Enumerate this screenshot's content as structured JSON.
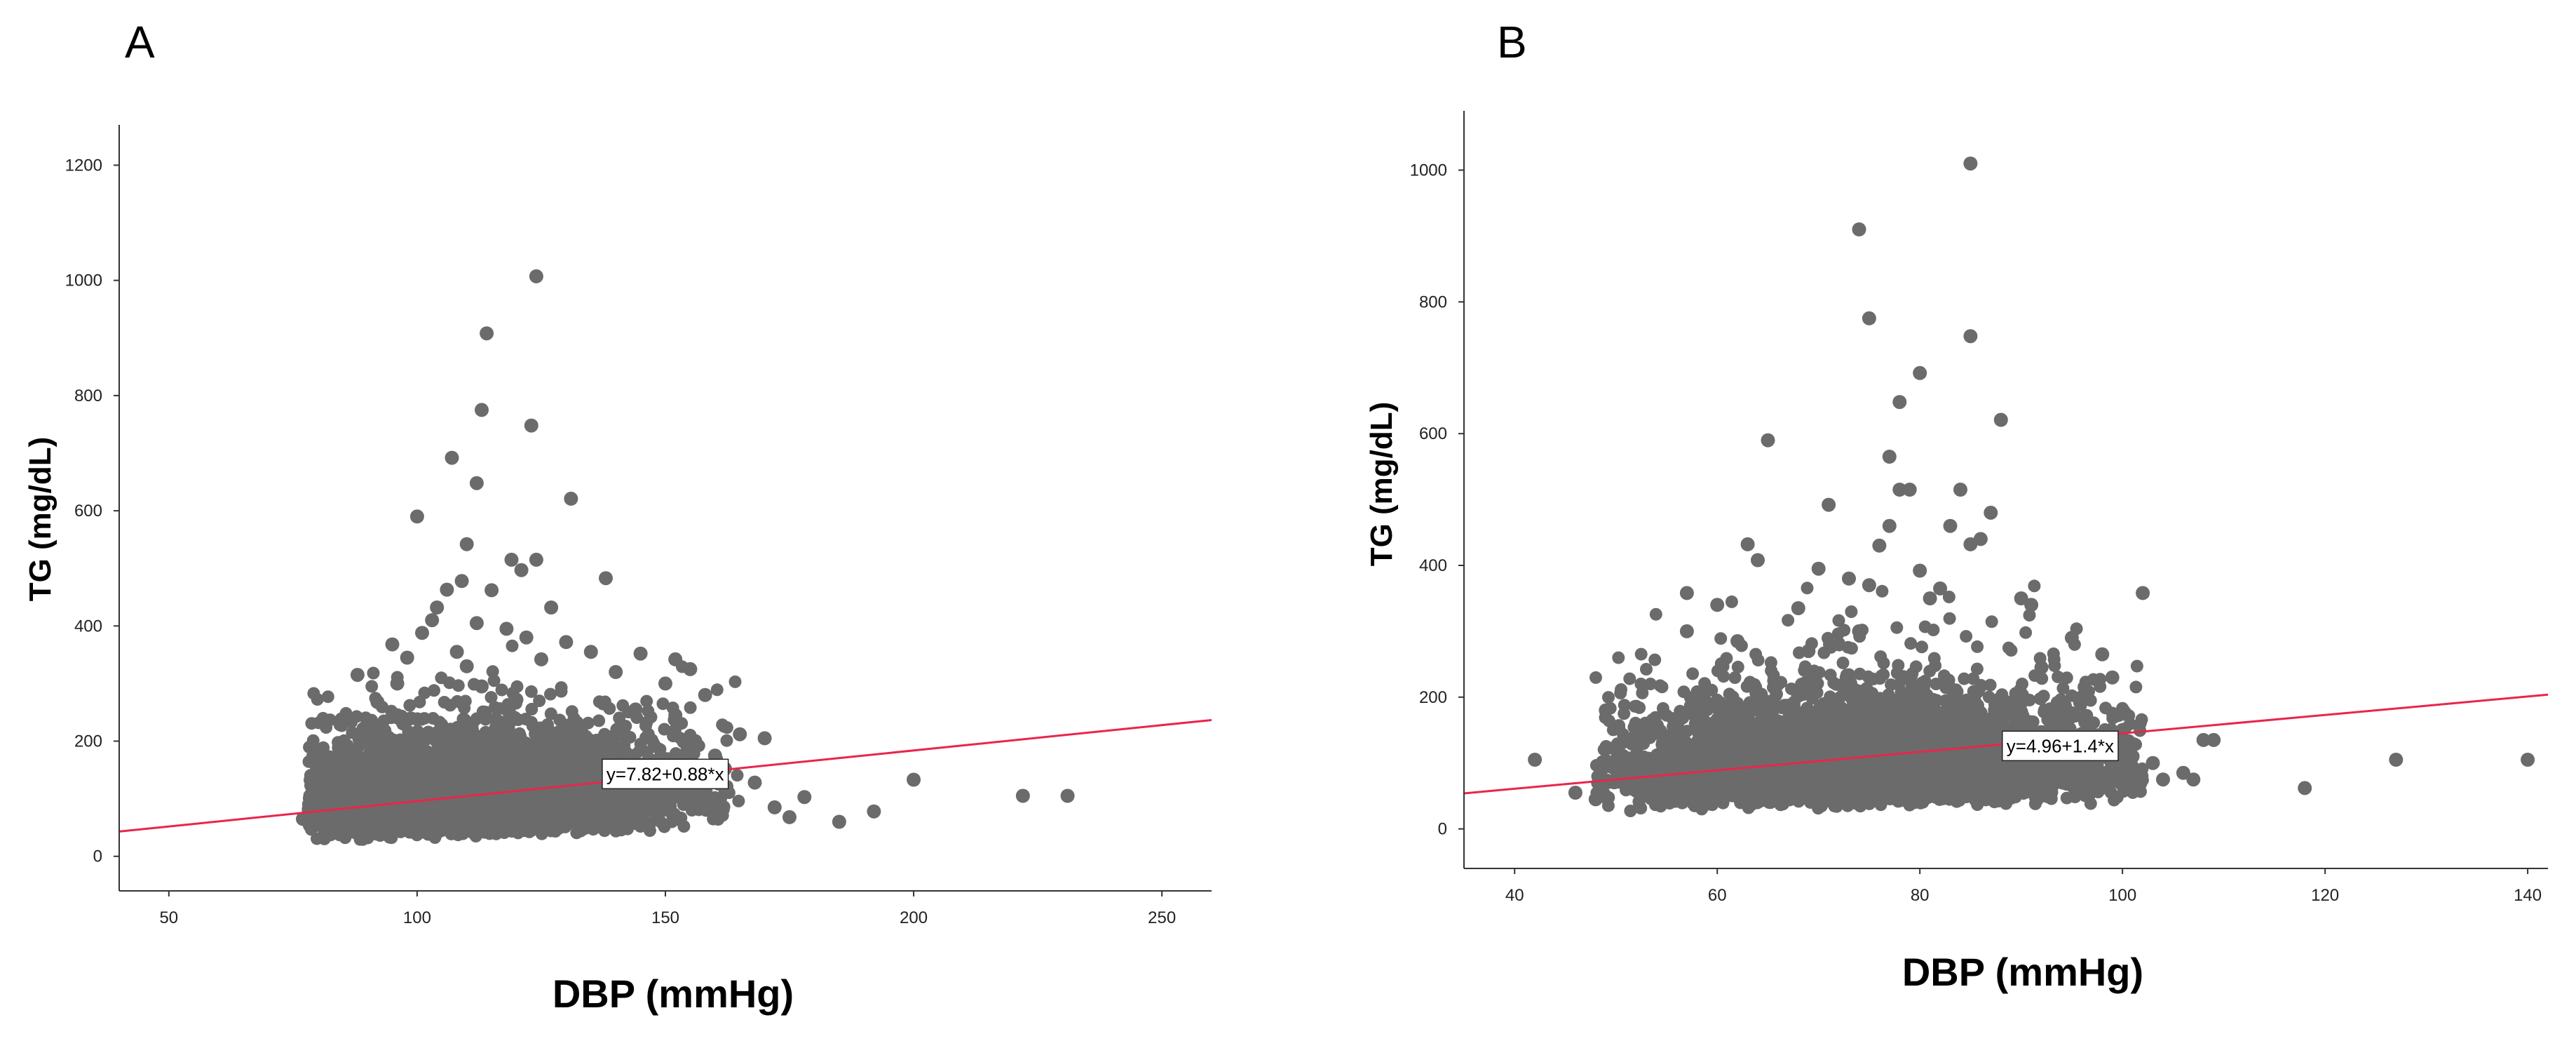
{
  "figure": {
    "colors": {
      "points": "#6b6b6b",
      "fit_line": "#e8264a",
      "axis": "#333333"
    }
  },
  "chart_data": [
    {
      "panel": "A",
      "type": "scatter",
      "title": "",
      "xlabel": "DBP (mmHg)",
      "ylabel": "TG (mg/dL)",
      "xlim": [
        40,
        260
      ],
      "ylim": [
        -60,
        1270
      ],
      "xticks": [
        50,
        100,
        150,
        200,
        250
      ],
      "yticks": [
        0,
        200,
        400,
        600,
        800,
        1000,
        1200
      ],
      "fit": {
        "equation": "y=7.82+0.88*x",
        "intercept": 7.82,
        "slope": 0.88,
        "label_at": [
          137,
          143
        ]
      },
      "cluster": {
        "x_min": 78,
        "x_max": 165,
        "x_center": 112,
        "y_min": 25,
        "note": "dense cloud of points"
      },
      "points": [
        [
          124,
          1007
        ],
        [
          114,
          908
        ],
        [
          113,
          775
        ],
        [
          123,
          748
        ],
        [
          107,
          692
        ],
        [
          112,
          648
        ],
        [
          131,
          621
        ],
        [
          100,
          590
        ],
        [
          110,
          542
        ],
        [
          119,
          515
        ],
        [
          124,
          515
        ],
        [
          121,
          497
        ],
        [
          109,
          478
        ],
        [
          106,
          463
        ],
        [
          138,
          483
        ],
        [
          115,
          462
        ],
        [
          104,
          432
        ],
        [
          127,
          432
        ],
        [
          103,
          410
        ],
        [
          112,
          405
        ],
        [
          118,
          395
        ],
        [
          101,
          388
        ],
        [
          122,
          380
        ],
        [
          130,
          372
        ],
        [
          95,
          368
        ],
        [
          108,
          355
        ],
        [
          135,
          355
        ],
        [
          98,
          345
        ],
        [
          125,
          342
        ],
        [
          145,
          352
        ],
        [
          152,
          342
        ],
        [
          110,
          330
        ],
        [
          88,
          315
        ],
        [
          140,
          320
        ],
        [
          155,
          325
        ],
        [
          96,
          300
        ],
        [
          150,
          300
        ],
        [
          113,
          295
        ],
        [
          158,
          280
        ],
        [
          92,
          268
        ],
        [
          120,
          272
        ],
        [
          165,
          212
        ],
        [
          170,
          205
        ],
        [
          162,
          152
        ],
        [
          168,
          128
        ],
        [
          172,
          85
        ],
        [
          175,
          68
        ],
        [
          178,
          103
        ],
        [
          185,
          60
        ],
        [
          192,
          78
        ],
        [
          200,
          133
        ],
        [
          222,
          105
        ],
        [
          231,
          105
        ],
        [
          80,
          78
        ],
        [
          77,
          65
        ],
        [
          82,
          52
        ],
        [
          85,
          130
        ],
        [
          88,
          160
        ],
        [
          90,
          220
        ],
        [
          96,
          245
        ],
        [
          144,
          255
        ],
        [
          152,
          245
        ],
        [
          156,
          200
        ],
        [
          160,
          175
        ]
      ]
    },
    {
      "panel": "B",
      "type": "scatter",
      "title": "",
      "xlabel": "DBP (mmHg)",
      "ylabel": "TG (mg/dL)",
      "xlim": [
        35,
        142
      ],
      "ylim": [
        -60,
        1090
      ],
      "xticks": [
        40,
        60,
        80,
        100,
        120,
        140
      ],
      "yticks": [
        0,
        200,
        400,
        600,
        800,
        1000
      ],
      "fit": {
        "equation": "y=4.96+1.4*x",
        "intercept": 4.96,
        "slope": 1.4,
        "label_at": [
          88,
          126
        ]
      },
      "cluster": {
        "x_min": 48,
        "x_max": 102,
        "x_center": 74,
        "y_min": 25,
        "note": "dense cloud of points"
      },
      "points": [
        [
          85,
          1010
        ],
        [
          74,
          910
        ],
        [
          75,
          775
        ],
        [
          85,
          748
        ],
        [
          80,
          692
        ],
        [
          78,
          648
        ],
        [
          88,
          621
        ],
        [
          65,
          590
        ],
        [
          77,
          565
        ],
        [
          78,
          515
        ],
        [
          79,
          515
        ],
        [
          84,
          515
        ],
        [
          71,
          492
        ],
        [
          87,
          480
        ],
        [
          83,
          460
        ],
        [
          77,
          460
        ],
        [
          76,
          430
        ],
        [
          85,
          432
        ],
        [
          86,
          440
        ],
        [
          63,
          432
        ],
        [
          64,
          408
        ],
        [
          70,
          395
        ],
        [
          80,
          392
        ],
        [
          73,
          380
        ],
        [
          75,
          370
        ],
        [
          82,
          365
        ],
        [
          57,
          358
        ],
        [
          102,
          358
        ],
        [
          90,
          350
        ],
        [
          91,
          340
        ],
        [
          81,
          350
        ],
        [
          60,
          340
        ],
        [
          68,
          335
        ],
        [
          74,
          300
        ],
        [
          95,
          290
        ],
        [
          57,
          300
        ],
        [
          62,
          285
        ],
        [
          98,
          265
        ],
        [
          69,
          270
        ],
        [
          42,
          105
        ],
        [
          46,
          55
        ],
        [
          48,
          45
        ],
        [
          49,
          180
        ],
        [
          52,
          130
        ],
        [
          99,
          230
        ],
        [
          100,
          150
        ],
        [
          101,
          110
        ],
        [
          103,
          100
        ],
        [
          104,
          75
        ],
        [
          106,
          85
        ],
        [
          107,
          75
        ],
        [
          108,
          135
        ],
        [
          109,
          135
        ],
        [
          118,
          62
        ],
        [
          127,
          105
        ],
        [
          140,
          105
        ],
        [
          55,
          80
        ],
        [
          59,
          110
        ],
        [
          96,
          200
        ],
        [
          92,
          245
        ]
      ]
    }
  ]
}
